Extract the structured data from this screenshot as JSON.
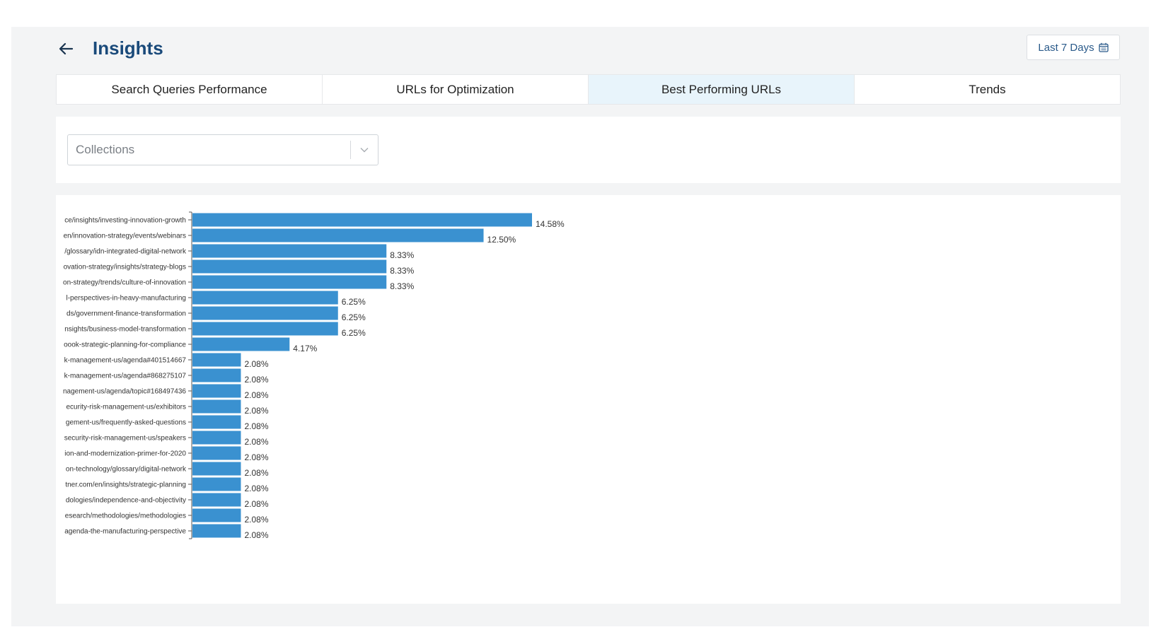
{
  "header": {
    "back_icon": "arrow-left-icon",
    "title": "Insights",
    "date_range_label": "Last 7 Days",
    "calendar_icon": "calendar-icon"
  },
  "tabs": [
    {
      "label": "Search Queries Performance",
      "active": false
    },
    {
      "label": "URLs for Optimization",
      "active": false
    },
    {
      "label": "Best Performing URLs",
      "active": true
    },
    {
      "label": "Trends",
      "active": false
    }
  ],
  "filter": {
    "placeholder": "Collections",
    "chevron_icon": "chevron-down-icon"
  },
  "colors": {
    "bar": "#3a91d0",
    "title": "#1a4a7a",
    "active_tab": "#e8f4fb"
  },
  "chart_data": {
    "type": "bar",
    "orientation": "horizontal",
    "categories": [
      "ce/insights/investing-innovation-growth",
      "en/innovation-strategy/events/webinars",
      "/glossary/idn-integrated-digital-network",
      "ovation-strategy/insights/strategy-blogs",
      "on-strategy/trends/culture-of-innovation",
      "l-perspectives-in-heavy-manufacturing",
      "ds/government-finance-transformation",
      "nsights/business-model-transformation",
      "oook-strategic-planning-for-compliance",
      "k-management-us/agenda#401514667",
      "k-management-us/agenda#868275107",
      "nagement-us/agenda/topic#168497436",
      "ecurity-risk-management-us/exhibitors",
      "gement-us/frequently-asked-questions",
      "security-risk-management-us/speakers",
      "ion-and-modernization-primer-for-2020",
      "on-technology/glossary/digital-network",
      "tner.com/en/insights/strategic-planning",
      "dologies/independence-and-objectivity",
      "esearch/methodologies/methodologies",
      "agenda-the-manufacturing-perspective"
    ],
    "values": [
      14.58,
      12.5,
      8.33,
      8.33,
      8.33,
      6.25,
      6.25,
      6.25,
      4.17,
      2.08,
      2.08,
      2.08,
      2.08,
      2.08,
      2.08,
      2.08,
      2.08,
      2.08,
      2.08,
      2.08,
      2.08
    ],
    "value_labels": [
      "14.58%",
      "12.50%",
      "8.33%",
      "8.33%",
      "8.33%",
      "6.25%",
      "6.25%",
      "6.25%",
      "4.17%",
      "2.08%",
      "2.08%",
      "2.08%",
      "2.08%",
      "2.08%",
      "2.08%",
      "2.08%",
      "2.08%",
      "2.08%",
      "2.08%",
      "2.08%",
      "2.08%"
    ],
    "title": "",
    "xlabel": "",
    "ylabel": "",
    "xlim": [
      0,
      14.58
    ],
    "grid": false,
    "legend": "none"
  }
}
